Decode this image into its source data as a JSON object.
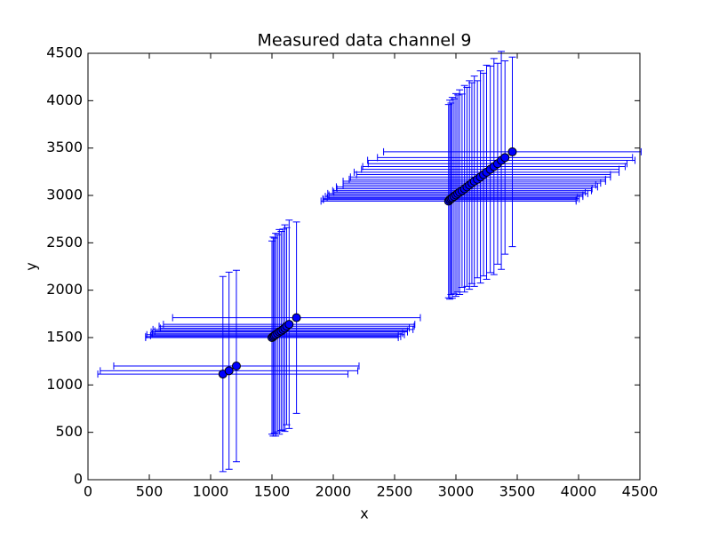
{
  "chart_data": {
    "type": "errorbar",
    "title": "Measured data channel 9",
    "x_label": "x",
    "y_label": "y",
    "xlim": [
      0,
      4500
    ],
    "ylim": [
      0,
      4500
    ],
    "xticks": [
      0,
      500,
      1000,
      1500,
      2000,
      2500,
      3000,
      3500,
      4000,
      4500
    ],
    "yticks": [
      0,
      500,
      1000,
      1500,
      2000,
      2500,
      3000,
      3500,
      4000,
      4500
    ],
    "series": [
      {
        "color": "#0000ff",
        "x": [
          1100,
          1150,
          1210,
          1500,
          1510,
          1520,
          1530,
          1545,
          1560,
          1575,
          1590,
          1605,
          1620,
          1640,
          1700,
          2940,
          2950,
          2960,
          2970,
          2985,
          3000,
          3015,
          3030,
          3050,
          3070,
          3090,
          3110,
          3130,
          3150,
          3175,
          3200,
          3225,
          3250,
          3280,
          3310,
          3340,
          3370,
          3400,
          3460
        ],
        "values": [
          1115,
          1150,
          1200,
          1500,
          1510,
          1520,
          1530,
          1545,
          1560,
          1570,
          1585,
          1600,
          1620,
          1640,
          1710,
          2940,
          2955,
          2965,
          2975,
          2990,
          3005,
          3020,
          3035,
          3050,
          3070,
          3090,
          3110,
          3130,
          3150,
          3170,
          3195,
          3220,
          3245,
          3275,
          3305,
          3335,
          3370,
          3400,
          3460
        ],
        "xerr": [
          1020,
          1050,
          1000,
          1030,
          1040,
          1010,
          1050,
          1020,
          1045,
          1030,
          1060,
          1015,
          1040,
          1025,
          1010,
          1040,
          1030,
          1045,
          1020,
          1050,
          1035,
          1060,
          1025,
          1055,
          1040,
          1065,
          1030,
          1050,
          1070,
          1045,
          1060,
          1035,
          1080,
          1050,
          1070,
          1055,
          1090,
          1040,
          1050
        ],
        "yerr": [
          1030,
          1040,
          1010,
          1020,
          1050,
          1030,
          1070,
          1040,
          1080,
          1050,
          1060,
          1090,
          1040,
          1100,
          1010,
          1020,
          1050,
          1010,
          1060,
          1030,
          1070,
          1040,
          1080,
          1020,
          1090,
          1050,
          1100,
          1060,
          1110,
          1040,
          1120,
          1070,
          1130,
          1090,
          1140,
          1060,
          1150,
          1020,
          1000
        ]
      }
    ]
  }
}
